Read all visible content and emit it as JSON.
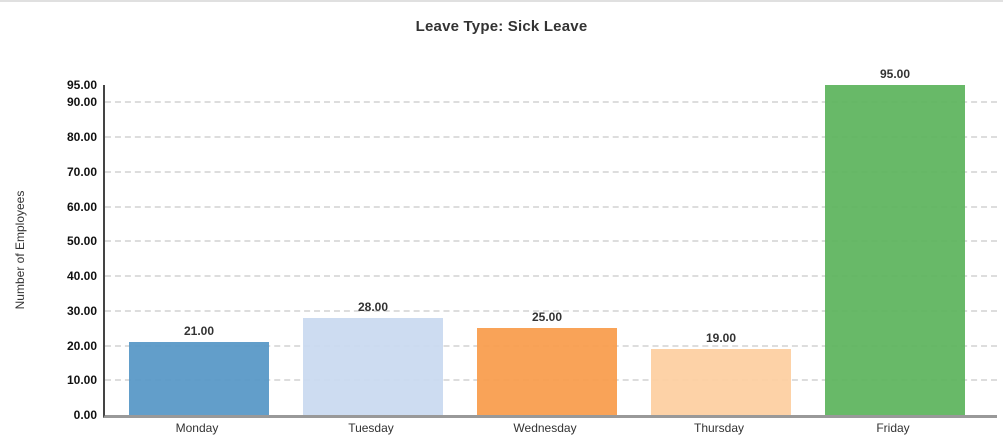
{
  "chart_data": {
    "type": "bar",
    "title": "Leave Type: Sick Leave",
    "xlabel": "",
    "ylabel": "Number of Employees",
    "categories": [
      "Monday",
      "Tuesday",
      "Wednesday",
      "Thursday",
      "Friday"
    ],
    "values": [
      21,
      28,
      25,
      19,
      95
    ],
    "value_labels": [
      "21.00",
      "28.00",
      "25.00",
      "19.00",
      "95.00"
    ],
    "bar_colors": [
      "#5697C6",
      "#C9D9F0",
      "#F99C4B",
      "#FDCFA0",
      "#5CB45C"
    ],
    "ylim": [
      0,
      95
    ],
    "y_ticks": [
      0,
      10,
      20,
      30,
      40,
      50,
      60,
      70,
      80,
      90,
      95
    ],
    "y_tick_labels": [
      "0.00",
      "10.00",
      "20.00",
      "30.00",
      "40.00",
      "50.00",
      "60.00",
      "70.00",
      "80.00",
      "90.00",
      "95.00"
    ],
    "gridline_values": [
      10,
      20,
      30,
      40,
      50,
      60,
      70,
      80,
      90
    ],
    "grid": true,
    "grid_style": "dashed",
    "legend": "none",
    "colors": {
      "grid_color": "#dddddd",
      "y_axis_line_color": "#444444",
      "x_axis_line_color": "#999999",
      "text_color": "#333333",
      "tick_label_color": "#111111",
      "top_border_color": "#e0e0e0",
      "background": "#ffffff"
    }
  }
}
